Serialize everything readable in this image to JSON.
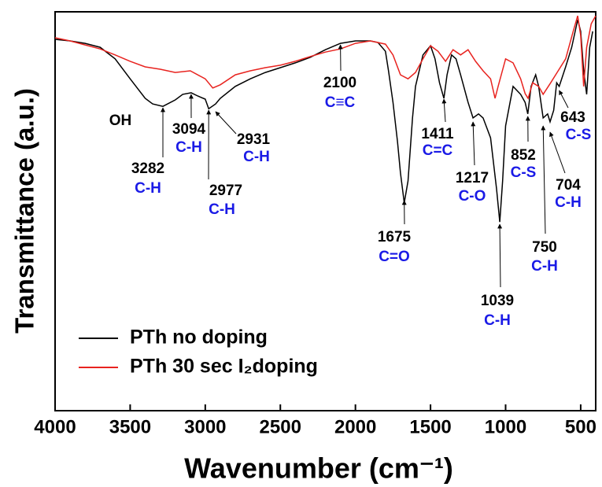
{
  "chart_data": {
    "type": "line",
    "xlabel": "Wavenumber (cm⁻¹)",
    "ylabel": "Transmittance (a.u.)",
    "xlim": [
      4000,
      400
    ],
    "xticks": [
      4000,
      3500,
      3000,
      2500,
      2000,
      1500,
      1000,
      500
    ],
    "ylim": [
      0,
      100
    ],
    "legend": "lower left",
    "series": [
      {
        "name": "PTh no doping",
        "color": "#000000",
        "x": [
          4000,
          3900,
          3800,
          3700,
          3600,
          3500,
          3400,
          3350,
          3282,
          3200,
          3150,
          3094,
          3050,
          3000,
          2977,
          2931,
          2900,
          2800,
          2700,
          2600,
          2500,
          2400,
          2300,
          2200,
          2100,
          2000,
          1900,
          1850,
          1800,
          1780,
          1750,
          1720,
          1700,
          1675,
          1650,
          1620,
          1600,
          1550,
          1500,
          1470,
          1440,
          1411,
          1390,
          1360,
          1330,
          1300,
          1250,
          1217,
          1180,
          1150,
          1100,
          1060,
          1039,
          1020,
          1000,
          950,
          900,
          870,
          852,
          830,
          800,
          780,
          750,
          720,
          704,
          680,
          660,
          643,
          600,
          560,
          520,
          500,
          480,
          460,
          440,
          420
        ],
        "values": [
          93.1,
          92.7,
          92.1,
          91.1,
          88.2,
          83.2,
          78.3,
          76.9,
          76.3,
          77.9,
          79.3,
          79.7,
          78.9,
          78.1,
          75.7,
          76.9,
          78.3,
          81.3,
          83.2,
          84.8,
          86.0,
          87.2,
          88.6,
          90.5,
          92.1,
          92.7,
          92.7,
          92.3,
          90.1,
          85.2,
          77.3,
          67.5,
          59.6,
          52.1,
          57.6,
          73.4,
          81.3,
          89.2,
          91.5,
          88.2,
          82.2,
          78.3,
          84.2,
          89.2,
          88.2,
          84.2,
          77.3,
          73.4,
          74.4,
          73.4,
          68.4,
          55.6,
          47.3,
          57.6,
          71.4,
          81.3,
          79.3,
          77.3,
          74.4,
          81.3,
          84.2,
          81.3,
          73.4,
          74.4,
          72.4,
          75.3,
          82.2,
          81.3,
          86.2,
          91.1,
          98.0,
          95.1,
          85.2,
          79.3,
          91.1,
          95.1
        ]
      },
      {
        "name": "PTh 30 sec I₂doping",
        "color": "#e8231f",
        "x": [
          4000,
          3900,
          3800,
          3700,
          3600,
          3500,
          3400,
          3300,
          3200,
          3100,
          3000,
          2950,
          2900,
          2800,
          2700,
          2600,
          2500,
          2400,
          2300,
          2200,
          2100,
          2000,
          1900,
          1800,
          1750,
          1700,
          1650,
          1600,
          1550,
          1500,
          1450,
          1400,
          1350,
          1300,
          1250,
          1200,
          1150,
          1100,
          1070,
          1050,
          1000,
          950,
          900,
          870,
          850,
          820,
          780,
          750,
          700,
          650,
          600,
          550,
          520,
          500,
          480,
          460,
          430,
          400
        ],
        "values": [
          93.5,
          92.7,
          91.7,
          90.7,
          89.2,
          87.6,
          86.2,
          85.6,
          84.8,
          85.2,
          83.2,
          80.9,
          81.7,
          84.2,
          85.2,
          86.0,
          86.6,
          87.6,
          88.8,
          89.9,
          90.7,
          92.1,
          92.7,
          91.9,
          89.2,
          84.2,
          83.2,
          84.8,
          88.2,
          91.5,
          90.1,
          87.6,
          90.5,
          89.2,
          90.5,
          87.6,
          85.2,
          83.2,
          78.3,
          81.3,
          88.2,
          87.2,
          83.2,
          79.5,
          78.3,
          82.2,
          81.3,
          79.3,
          82.2,
          85.2,
          88.2,
          95.1,
          99.0,
          94.1,
          81.3,
          91.1,
          97.0,
          99.0
        ]
      }
    ],
    "annotations": [
      {
        "wavenumber": 3282,
        "group": "C-H"
      },
      {
        "wavenumber": 3094,
        "group": "C-H"
      },
      {
        "wavenumber": 2931,
        "group": "C-H"
      },
      {
        "wavenumber": 2977,
        "group": "C-H"
      },
      {
        "wavenumber": 2100,
        "group": "C≡C"
      },
      {
        "wavenumber": 1675,
        "group": "C=O"
      },
      {
        "wavenumber": 1411,
        "group": "C=C"
      },
      {
        "wavenumber": 1217,
        "group": "C-O"
      },
      {
        "wavenumber": 1039,
        "group": "C-H"
      },
      {
        "wavenumber": 852,
        "group": "C-S"
      },
      {
        "wavenumber": 750,
        "group": "C-H"
      },
      {
        "wavenumber": 704,
        "group": "C-H"
      },
      {
        "wavenumber": 643,
        "group": "C-S"
      }
    ],
    "note": "OH"
  }
}
